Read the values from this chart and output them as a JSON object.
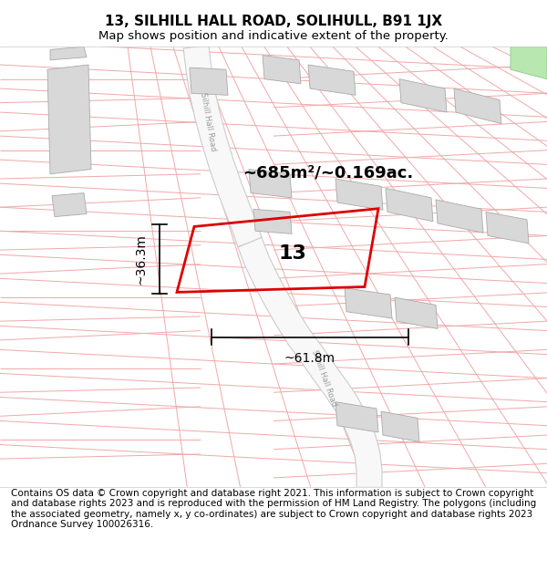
{
  "title": "13, SILHILL HALL ROAD, SOLIHULL, B91 1JX",
  "subtitle": "Map shows position and indicative extent of the property.",
  "footer": "Contains OS data © Crown copyright and database right 2021. This information is subject to Crown copyright and database rights 2023 and is reproduced with the permission of HM Land Registry. The polygons (including the associated geometry, namely x, y co-ordinates) are subject to Crown copyright and database rights 2023 Ordnance Survey 100026316.",
  "area_text": "~685m²/~0.169ac.",
  "plot_number": "13",
  "dim_width": "~61.8m",
  "dim_height": "~36.3m",
  "bg_color": "#ffffff",
  "map_bg": "#ffffff",
  "cadastral_line_color": "#f0a8a8",
  "road_fill_color": "#f8f8f8",
  "road_border_color": "#cccccc",
  "building_color": "#d8d8d8",
  "building_edge": "#aaaaaa",
  "plot_edge_color": "#dd0000",
  "plot_fill": "none",
  "green_color": "#b8e8b0",
  "green_edge": "#88cc88",
  "title_fontsize": 11,
  "subtitle_fontsize": 9.5,
  "footer_fontsize": 7.5,
  "area_fontsize": 13,
  "plot_num_fontsize": 16,
  "dim_fontsize": 10,
  "road_label_fontsize": 6,
  "road_label_color": "#999999"
}
